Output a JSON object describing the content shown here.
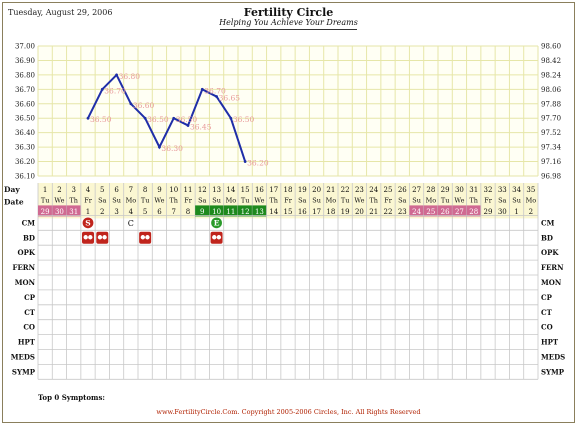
{
  "header": {
    "date": "Tuesday, August 29, 2006",
    "title": "Fertility Circle",
    "subtitle": "Helping You Achieve Your Dreams"
  },
  "chart_data": {
    "type": "line",
    "title": "",
    "xlabel": "Day",
    "ylabel": "",
    "y_left_ticks": [
      "37.00",
      "36.90",
      "36.80",
      "36.70",
      "36.60",
      "36.50",
      "36.40",
      "36.30",
      "36.20",
      "36.10"
    ],
    "y_right_ticks": [
      "98.60",
      "98.42",
      "98.24",
      "98.06",
      "97.88",
      "97.70",
      "97.52",
      "97.34",
      "97.16",
      "96.98"
    ],
    "ylim": [
      36.1,
      37.0
    ],
    "x_days": [
      "1",
      "2",
      "3",
      "4",
      "5",
      "6",
      "7",
      "8",
      "9",
      "10",
      "11",
      "12",
      "13",
      "14",
      "15",
      "16",
      "17",
      "18",
      "19",
      "20",
      "21",
      "22",
      "23",
      "24",
      "25",
      "26",
      "27",
      "28",
      "29",
      "30",
      "31",
      "32",
      "33",
      "34",
      "35"
    ],
    "series": [
      {
        "x": [
          4,
          5,
          6,
          7,
          8,
          9,
          10,
          11,
          12,
          13,
          14,
          15
        ],
        "y": [
          36.5,
          36.7,
          36.8,
          36.6,
          36.5,
          36.3,
          36.5,
          36.45,
          36.7,
          36.65,
          36.5,
          36.2
        ],
        "labels": [
          "36.50",
          "36.70",
          "36.80",
          "36.60",
          "36.50",
          "36.30",
          "36.50",
          "36.45",
          "36.70",
          "36.65",
          "36.50",
          "36.20"
        ]
      }
    ],
    "grid": true,
    "line_color": "#1f2ea8",
    "label_color": "#e89a9a",
    "grid_color": "#e6e6a8"
  },
  "table": {
    "day_label": "Day",
    "date_label": "Date",
    "days": [
      "1",
      "2",
      "3",
      "4",
      "5",
      "6",
      "7",
      "8",
      "9",
      "10",
      "11",
      "12",
      "13",
      "14",
      "15",
      "16",
      "17",
      "18",
      "19",
      "20",
      "21",
      "22",
      "23",
      "24",
      "25",
      "26",
      "27",
      "28",
      "29",
      "30",
      "31",
      "32",
      "33",
      "34",
      "35"
    ],
    "weekdays": [
      "Tu",
      "We",
      "Th",
      "Fr",
      "Sa",
      "Su",
      "Mo",
      "Tu",
      "We",
      "Th",
      "Fr",
      "Sa",
      "Su",
      "Mo",
      "Tu",
      "We",
      "Th",
      "Fr",
      "Sa",
      "Su",
      "Mo",
      "Tu",
      "We",
      "Th",
      "Fr",
      "Sa",
      "Su",
      "Mo",
      "Tu",
      "We",
      "Th",
      "Fr",
      "Sa",
      "Su",
      "Mo"
    ],
    "dates": [
      "29",
      "30",
      "31",
      "1",
      "2",
      "3",
      "4",
      "5",
      "6",
      "7",
      "8",
      "9",
      "10",
      "11",
      "12",
      "13",
      "14",
      "15",
      "16",
      "17",
      "18",
      "19",
      "20",
      "21",
      "22",
      "23",
      "24",
      "25",
      "26",
      "27",
      "28",
      "29",
      "30",
      "1",
      "2"
    ],
    "date_styles": [
      "p",
      "p",
      "p",
      "",
      "",
      "",
      "",
      "",
      "",
      "",
      "",
      "g",
      "g",
      "g",
      "g",
      "g",
      "",
      "",
      "",
      "",
      "",
      "",
      "",
      "",
      "",
      "",
      "p",
      "p",
      "p",
      "p",
      "p",
      "",
      "",
      "",
      ""
    ],
    "row_labels": [
      "CM",
      "BD",
      "OPK",
      "FERN",
      "MON",
      "CP",
      "CT",
      "CO",
      "HPT",
      "MEDS",
      "SYMP"
    ],
    "cm_marks": [
      {
        "col": 4,
        "text": "S",
        "color": "#c0241c"
      },
      {
        "col": 13,
        "text": "E",
        "color": "#2a9a2a"
      }
    ],
    "cm_plain": [
      {
        "col": 7,
        "text": "C"
      }
    ],
    "bd_marks": [
      4,
      5,
      8,
      13
    ],
    "colors": {
      "pink": "#d06a92",
      "green": "#1e8a1e",
      "header_bg": "#fbf7d2",
      "grid_line": "#c8c8c8",
      "bd_red": "#c0241c"
    }
  },
  "footer": {
    "top_symptoms": "Top 0 Symptoms:",
    "copyright": "www.FertilityCircle.Com. Copyright 2005-2006 Circles, Inc. All Rights Reserved"
  }
}
